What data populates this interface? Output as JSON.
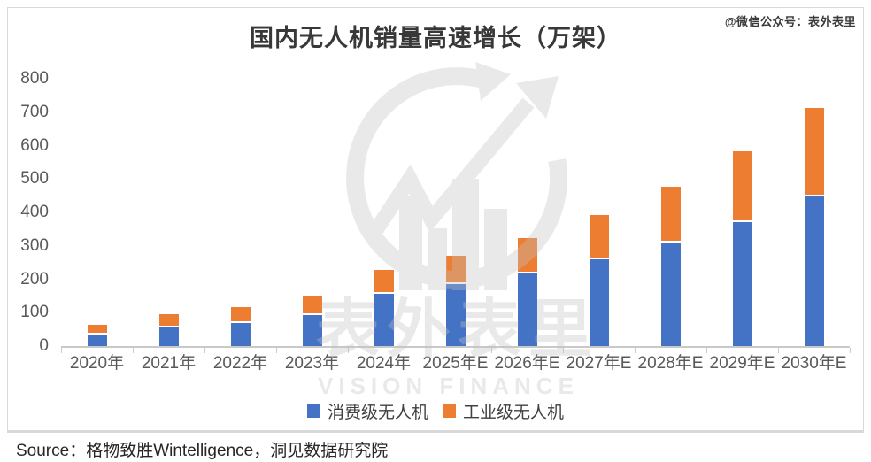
{
  "meta": {
    "wechat_handle": "@微信公众号：表外表里",
    "source_note": "Source：格物致胜Wintelligence，洞见数据研究院",
    "watermark": {
      "cn_text": "表外表里",
      "en_text": "VISION FINANCE"
    }
  },
  "chart_data": {
    "type": "bar",
    "stacked": true,
    "title": "国内无人机销量高速增长（万架）",
    "categories": [
      "2020年",
      "2021年",
      "2022年",
      "2023年",
      "2024年",
      "2025年E",
      "2026年E",
      "2027年E",
      "2028年E",
      "2029年E",
      "2030年E"
    ],
    "series": [
      {
        "name": "消费级无人机",
        "color": "#4472C4",
        "values": [
          34,
          55,
          70,
          93,
          157,
          185,
          218,
          260,
          310,
          372,
          447
        ]
      },
      {
        "name": "工业级无人机",
        "color": "#ED7D31",
        "values": [
          24,
          34,
          41,
          53,
          65,
          80,
          100,
          128,
          161,
          205,
          260
        ]
      }
    ],
    "totals": [
      58,
      89,
      111,
      146,
      222,
      265,
      318,
      388,
      471,
      577,
      707
    ],
    "xlabel": "",
    "ylabel": "",
    "ylim": [
      0,
      800
    ],
    "yticks": [
      0,
      100,
      200,
      300,
      400,
      500,
      600,
      700,
      800
    ],
    "grid": false,
    "legend_position": "bottom",
    "axis_color": "#c9c9c9",
    "tick_label_color": "#595959"
  }
}
